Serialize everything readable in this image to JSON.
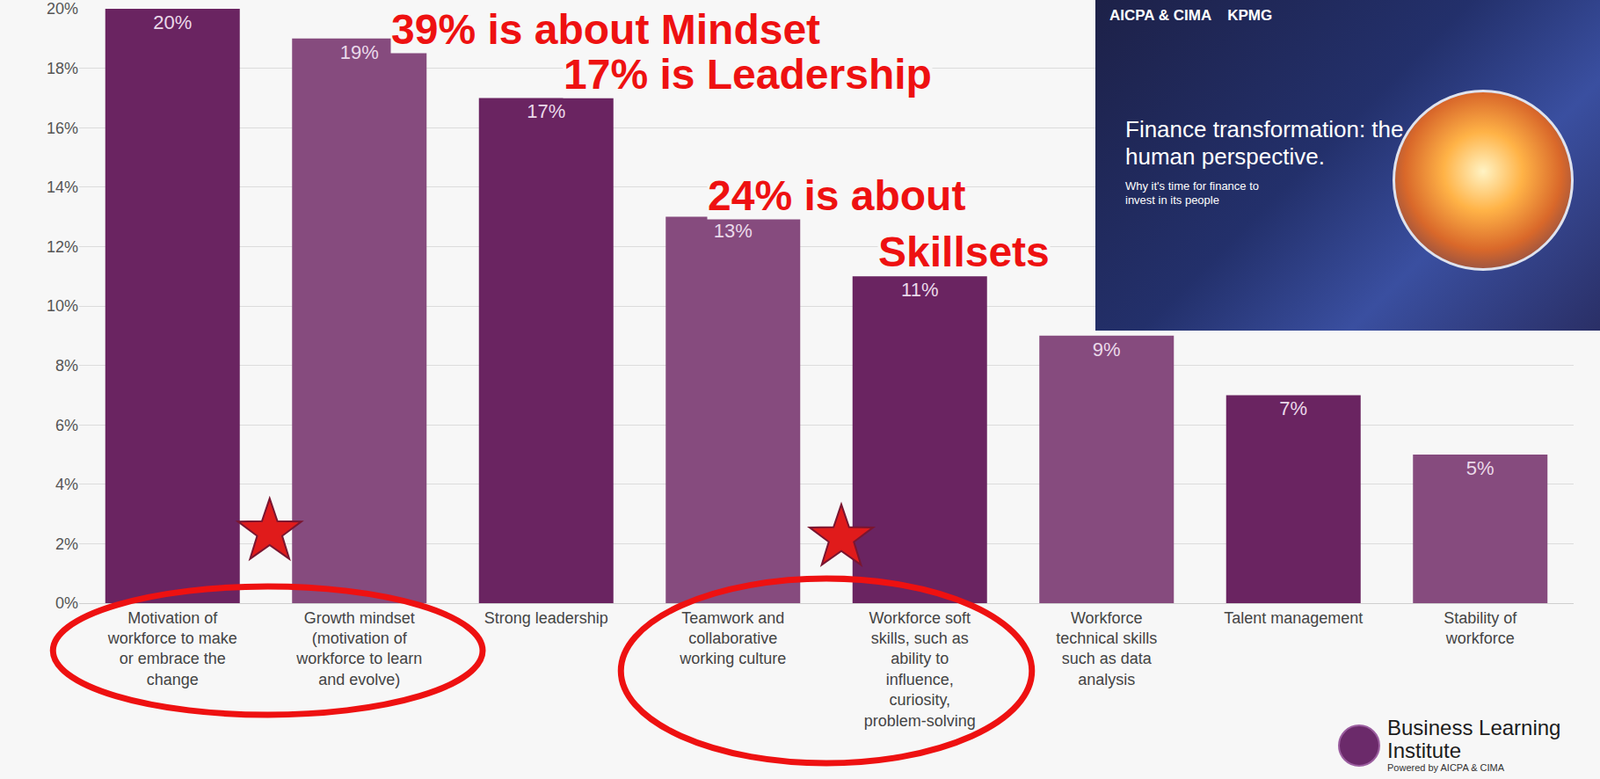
{
  "chart_data": {
    "type": "bar",
    "categories": [
      "Motivation of workforce to make or embrace the change",
      "Growth mindset (motivation of workforce to learn and evolve)",
      "Strong leadership",
      "Teamwork and collaborative working culture",
      "Workforce soft skills, such as ability to influence, curiosity, problem-solving",
      "Workforce technical skills such as data analysis",
      "Talent management",
      "Stability of workforce"
    ],
    "values": [
      20,
      19,
      17,
      13,
      11,
      9,
      7,
      5
    ],
    "value_labels": [
      "20%",
      "19%",
      "17%",
      "13%",
      "11%",
      "9%",
      "7%",
      "5%"
    ],
    "colors": [
      "#6a2461",
      "#864b7e",
      "#6a2461",
      "#864b7e",
      "#6a2461",
      "#864b7e",
      "#6a2461",
      "#864b7e"
    ],
    "data_labels": true,
    "ylim": [
      0,
      20
    ],
    "yticks": [
      {
        "value": 0,
        "label": "0%"
      },
      {
        "value": 2,
        "label": "2%"
      },
      {
        "value": 4,
        "label": "4%"
      },
      {
        "value": 6,
        "label": "6%"
      },
      {
        "value": 8,
        "label": "8%"
      },
      {
        "value": 10,
        "label": "10%"
      },
      {
        "value": 12,
        "label": "12%"
      },
      {
        "value": 14,
        "label": "14%"
      },
      {
        "value": 16,
        "label": "16%"
      },
      {
        "value": 18,
        "label": "18%"
      },
      {
        "value": 20,
        "label": "20%"
      }
    ],
    "grid": true,
    "annotations": [
      {
        "text": "39% is about Mindset"
      },
      {
        "text": "17% is Leadership"
      },
      {
        "text": "24% is about"
      },
      {
        "text": "Skillsets"
      }
    ]
  },
  "inset": {
    "brands": [
      "AICPA & CIMA",
      "KPMG"
    ],
    "title": "Finance transformation: the human perspective.",
    "subtitle": "Why it's time for finance to invest in its people"
  },
  "logo": {
    "name": "Business Learning Institute",
    "tagline": "Powered by AICPA & CIMA"
  }
}
